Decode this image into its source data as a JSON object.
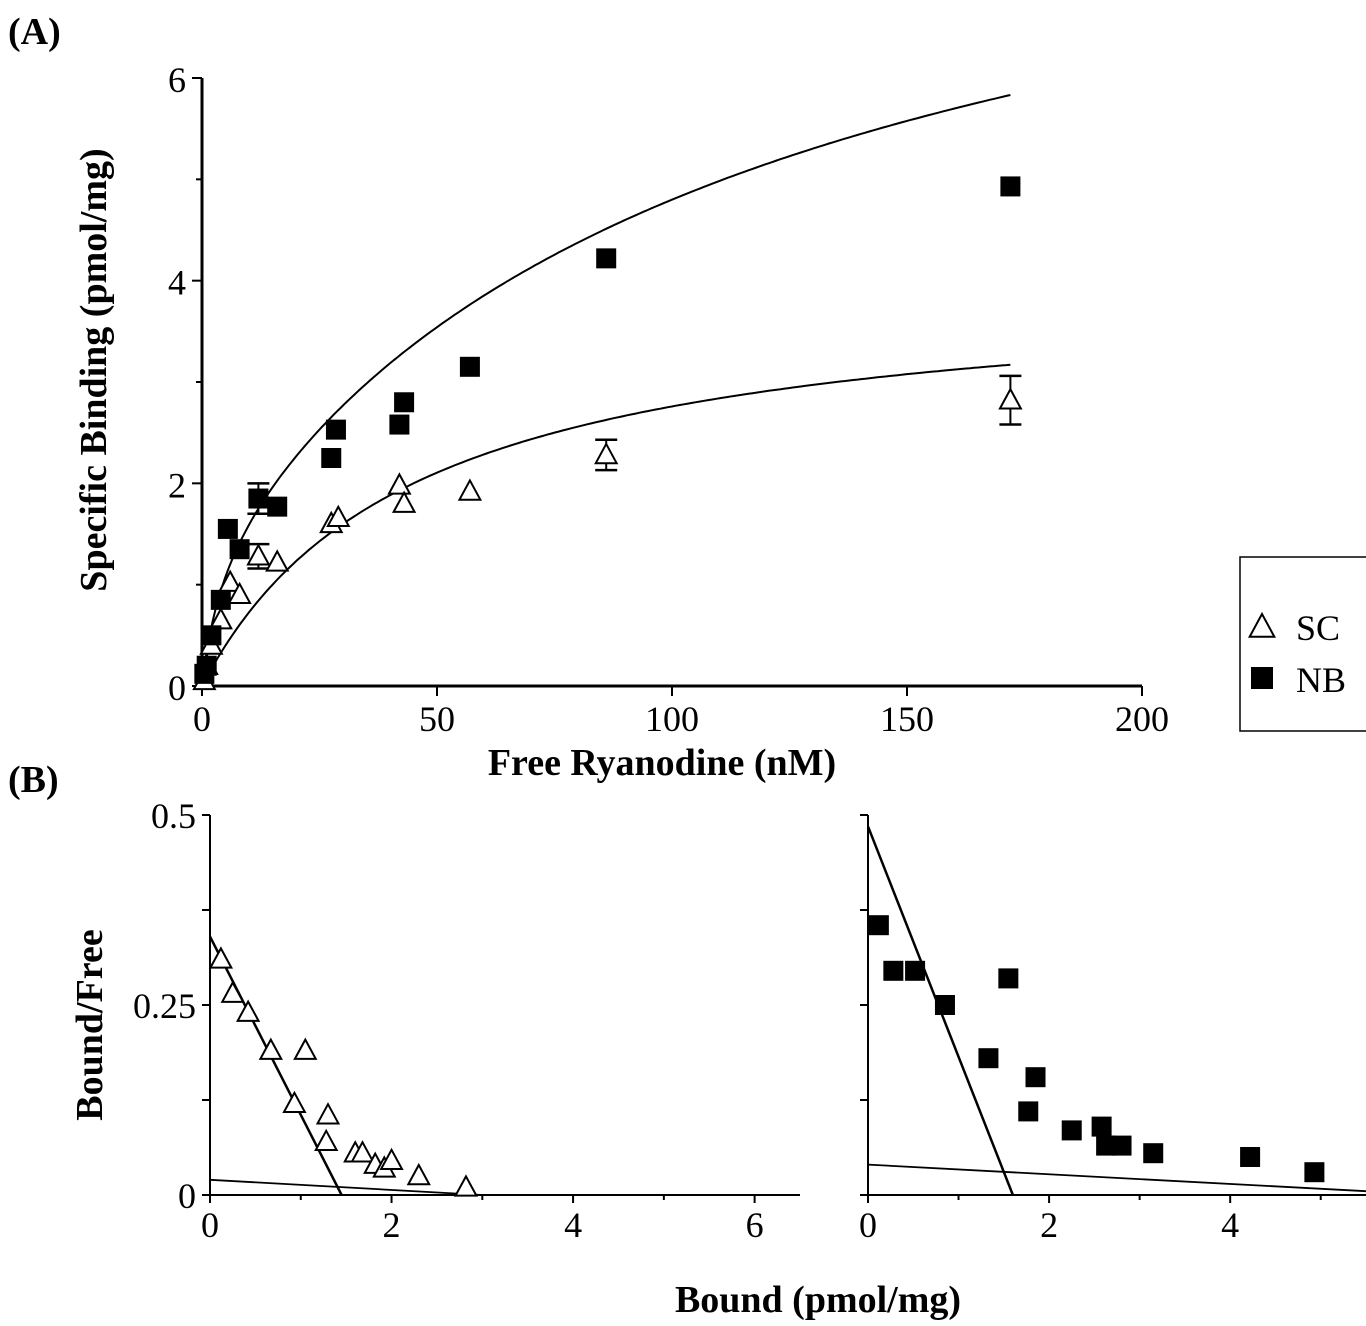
{
  "chart_data": [
    {
      "panel_label": "(A)",
      "type": "scatter",
      "xlabel": "Free Ryanodine (nM)",
      "ylabel": "Specific Binding (pmol/mg)",
      "xlim": [
        0,
        200
      ],
      "ylim": [
        0,
        6
      ],
      "xticks": [
        "0",
        "50",
        "100",
        "150",
        "200"
      ],
      "yticks": [
        "0",
        "2",
        "4",
        "6"
      ],
      "legend": {
        "placement": "right",
        "entries": [
          "SC",
          "NB"
        ]
      },
      "series": [
        {
          "name": "SC",
          "marker": "open-triangle",
          "points": [
            [
              0.5,
              0.05
            ],
            [
              1,
              0.2
            ],
            [
              2,
              0.4
            ],
            [
              4,
              0.65
            ],
            [
              6,
              1.02
            ],
            [
              8,
              0.9
            ],
            [
              12,
              1.28
            ],
            [
              16,
              1.22
            ],
            [
              27.5,
              1.6
            ],
            [
              29,
              1.66
            ],
            [
              42,
              1.98
            ],
            [
              43,
              1.8
            ],
            [
              57,
              1.92
            ],
            [
              86,
              2.28
            ],
            [
              172,
              2.82
            ]
          ],
          "error_bars": [
            [
              12,
              1.28,
              0.12
            ],
            [
              86,
              2.28,
              0.15
            ],
            [
              172,
              2.82,
              0.24
            ]
          ],
          "fit": {
            "bmax": 4.0,
            "kd": 45,
            "bmax2": 0,
            "kd2": 1
          }
        },
        {
          "name": "NB",
          "marker": "filled-square",
          "points": [
            [
              0.5,
              0.12
            ],
            [
              1,
              0.2
            ],
            [
              2,
              0.5
            ],
            [
              4,
              0.85
            ],
            [
              5.5,
              1.55
            ],
            [
              8,
              1.35
            ],
            [
              12,
              1.85
            ],
            [
              16,
              1.77
            ],
            [
              27.5,
              2.25
            ],
            [
              28.5,
              2.53
            ],
            [
              42,
              2.58
            ],
            [
              43,
              2.8
            ],
            [
              57,
              3.15
            ],
            [
              86,
              4.22
            ],
            [
              172,
              4.93
            ]
          ],
          "error_bars": [
            [
              12,
              1.85,
              0.15
            ]
          ],
          "fit": {
            "bmax": 1.45,
            "kd": 4.3,
            "bmax2": 7.5,
            "kd2": 120
          }
        }
      ]
    },
    {
      "panel_label": "(B)",
      "type": "scatter",
      "xlabel": "Bound (pmol/mg)",
      "ylabel": "Bound/Free",
      "xlim": [
        0,
        6.5
      ],
      "ylim": [
        0,
        0.5
      ],
      "xticks": [
        "0",
        "2",
        "4",
        "6"
      ],
      "yticks": [
        "0",
        "0.25",
        "0.5"
      ],
      "series_name": "SC",
      "marker": "open-triangle",
      "points": [
        [
          0.12,
          0.31
        ],
        [
          0.25,
          0.265
        ],
        [
          0.42,
          0.24
        ],
        [
          0.67,
          0.19
        ],
        [
          0.93,
          0.12
        ],
        [
          1.05,
          0.19
        ],
        [
          1.28,
          0.07
        ],
        [
          1.3,
          0.105
        ],
        [
          1.6,
          0.055
        ],
        [
          1.68,
          0.055
        ],
        [
          1.82,
          0.04
        ],
        [
          1.92,
          0.035
        ],
        [
          2.0,
          0.045
        ],
        [
          2.3,
          0.025
        ],
        [
          2.82,
          0.01
        ]
      ],
      "lines": [
        [
          [
            0,
            0.34
          ],
          [
            1.45,
            0
          ]
        ],
        [
          [
            0,
            0.02
          ],
          [
            3,
            0
          ]
        ]
      ]
    },
    {
      "type": "scatter",
      "xlabel": "Bound (pmol/mg)",
      "ylabel": "",
      "xlim": [
        0,
        5.5
      ],
      "ylim": [
        0,
        0.5
      ],
      "xticks": [
        "0",
        "2",
        "4"
      ],
      "yticks": [],
      "series_name": "NB",
      "marker": "filled-square",
      "points": [
        [
          0.12,
          0.355
        ],
        [
          0.28,
          0.295
        ],
        [
          0.52,
          0.295
        ],
        [
          0.85,
          0.25
        ],
        [
          1.33,
          0.18
        ],
        [
          1.55,
          0.285
        ],
        [
          1.77,
          0.11
        ],
        [
          1.85,
          0.155
        ],
        [
          2.25,
          0.085
        ],
        [
          2.58,
          0.09
        ],
        [
          2.63,
          0.065
        ],
        [
          2.8,
          0.065
        ],
        [
          3.15,
          0.055
        ],
        [
          4.22,
          0.05
        ],
        [
          4.93,
          0.03
        ]
      ],
      "lines": [
        [
          [
            0,
            0.485
          ],
          [
            1.6,
            0
          ]
        ],
        [
          [
            0,
            0.04
          ],
          [
            5.5,
            0.005
          ]
        ]
      ]
    }
  ],
  "colors": {
    "ink": "#000000",
    "background": "#ffffff"
  }
}
